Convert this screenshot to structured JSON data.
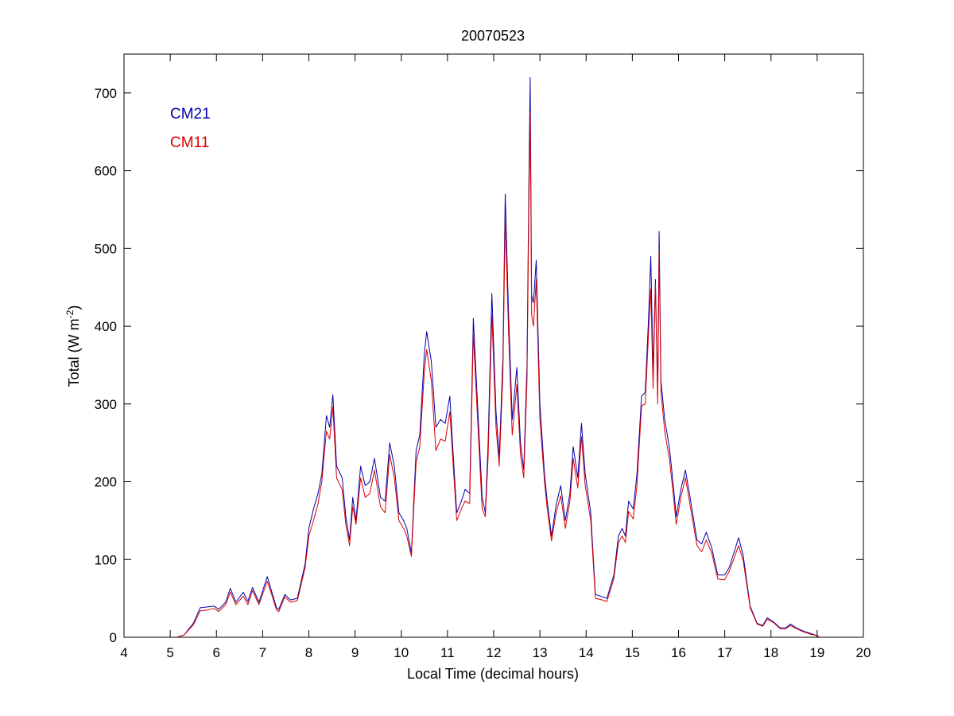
{
  "chart_data": {
    "type": "line",
    "title": "20070523",
    "xlabel": "Local Time (decimal hours)",
    "ylabel": {
      "base": "Total (W m",
      "sup": "-2",
      "close": ")"
    },
    "xlim": [
      4,
      20
    ],
    "ylim": [
      0,
      750
    ],
    "xticks": [
      4,
      5,
      6,
      7,
      8,
      9,
      10,
      11,
      12,
      13,
      14,
      15,
      16,
      17,
      18,
      19,
      20
    ],
    "yticks": [
      0,
      100,
      200,
      300,
      400,
      500,
      600,
      700
    ],
    "grid": false,
    "legend_position": "top-left",
    "series": [
      {
        "name": "CM21",
        "color": "#0000aa",
        "points": [
          [
            5.15,
            0
          ],
          [
            5.3,
            3
          ],
          [
            5.5,
            18
          ],
          [
            5.65,
            38
          ],
          [
            5.8,
            39
          ],
          [
            5.95,
            40
          ],
          [
            6.05,
            36
          ],
          [
            6.2,
            45
          ],
          [
            6.3,
            63
          ],
          [
            6.42,
            45
          ],
          [
            6.58,
            58
          ],
          [
            6.68,
            46
          ],
          [
            6.78,
            64
          ],
          [
            6.92,
            45
          ],
          [
            7.1,
            78
          ],
          [
            7.18,
            62
          ],
          [
            7.3,
            38
          ],
          [
            7.35,
            36
          ],
          [
            7.48,
            55
          ],
          [
            7.6,
            48
          ],
          [
            7.75,
            50
          ],
          [
            7.92,
            95
          ],
          [
            8.0,
            140
          ],
          [
            8.1,
            165
          ],
          [
            8.2,
            185
          ],
          [
            8.28,
            210
          ],
          [
            8.38,
            285
          ],
          [
            8.45,
            270
          ],
          [
            8.52,
            312
          ],
          [
            8.6,
            220
          ],
          [
            8.72,
            205
          ],
          [
            8.8,
            155
          ],
          [
            8.88,
            125
          ],
          [
            8.95,
            180
          ],
          [
            9.02,
            150
          ],
          [
            9.12,
            220
          ],
          [
            9.22,
            195
          ],
          [
            9.32,
            200
          ],
          [
            9.42,
            230
          ],
          [
            9.55,
            180
          ],
          [
            9.65,
            175
          ],
          [
            9.75,
            250
          ],
          [
            9.85,
            220
          ],
          [
            9.95,
            160
          ],
          [
            10.05,
            150
          ],
          [
            10.12,
            140
          ],
          [
            10.22,
            108
          ],
          [
            10.32,
            240
          ],
          [
            10.4,
            260
          ],
          [
            10.5,
            365
          ],
          [
            10.55,
            393
          ],
          [
            10.65,
            355
          ],
          [
            10.75,
            270
          ],
          [
            10.85,
            280
          ],
          [
            10.95,
            275
          ],
          [
            11.05,
            310
          ],
          [
            11.12,
            240
          ],
          [
            11.2,
            160
          ],
          [
            11.3,
            175
          ],
          [
            11.38,
            190
          ],
          [
            11.48,
            185
          ],
          [
            11.56,
            410
          ],
          [
            11.65,
            300
          ],
          [
            11.75,
            180
          ],
          [
            11.82,
            160
          ],
          [
            11.88,
            250
          ],
          [
            11.96,
            442
          ],
          [
            12.05,
            290
          ],
          [
            12.12,
            232
          ],
          [
            12.2,
            360
          ],
          [
            12.25,
            570
          ],
          [
            12.32,
            420
          ],
          [
            12.4,
            280
          ],
          [
            12.5,
            347
          ],
          [
            12.58,
            250
          ],
          [
            12.65,
            215
          ],
          [
            12.72,
            350
          ],
          [
            12.76,
            580
          ],
          [
            12.79,
            720
          ],
          [
            12.82,
            440
          ],
          [
            12.86,
            430
          ],
          [
            12.92,
            485
          ],
          [
            13.0,
            300
          ],
          [
            13.1,
            210
          ],
          [
            13.15,
            180
          ],
          [
            13.25,
            130
          ],
          [
            13.35,
            170
          ],
          [
            13.45,
            195
          ],
          [
            13.55,
            150
          ],
          [
            13.65,
            185
          ],
          [
            13.72,
            245
          ],
          [
            13.82,
            205
          ],
          [
            13.9,
            275
          ],
          [
            13.98,
            210
          ],
          [
            14.1,
            160
          ],
          [
            14.2,
            55
          ],
          [
            14.35,
            52
          ],
          [
            14.45,
            50
          ],
          [
            14.6,
            80
          ],
          [
            14.7,
            130
          ],
          [
            14.78,
            140
          ],
          [
            14.85,
            130
          ],
          [
            14.92,
            175
          ],
          [
            15.02,
            165
          ],
          [
            15.1,
            210
          ],
          [
            15.2,
            310
          ],
          [
            15.28,
            315
          ],
          [
            15.35,
            408
          ],
          [
            15.4,
            490
          ],
          [
            15.45,
            340
          ],
          [
            15.5,
            460
          ],
          [
            15.55,
            310
          ],
          [
            15.58,
            522
          ],
          [
            15.62,
            330
          ],
          [
            15.7,
            280
          ],
          [
            15.8,
            245
          ],
          [
            15.88,
            200
          ],
          [
            15.95,
            155
          ],
          [
            16.05,
            190
          ],
          [
            16.15,
            215
          ],
          [
            16.25,
            180
          ],
          [
            16.4,
            125
          ],
          [
            16.5,
            120
          ],
          [
            16.6,
            135
          ],
          [
            16.72,
            115
          ],
          [
            16.85,
            80
          ],
          [
            17.0,
            80
          ],
          [
            17.1,
            90
          ],
          [
            17.3,
            128
          ],
          [
            17.4,
            105
          ],
          [
            17.55,
            40
          ],
          [
            17.7,
            18
          ],
          [
            17.82,
            15
          ],
          [
            17.92,
            25
          ],
          [
            18.05,
            20
          ],
          [
            18.2,
            12
          ],
          [
            18.32,
            12
          ],
          [
            18.42,
            17
          ],
          [
            18.55,
            12
          ],
          [
            18.7,
            8
          ],
          [
            18.85,
            5
          ],
          [
            19.0,
            2
          ],
          [
            19.05,
            0
          ]
        ]
      },
      {
        "name": "CM11",
        "color": "#dd0000",
        "points": [
          [
            5.15,
            0
          ],
          [
            5.3,
            3
          ],
          [
            5.5,
            16
          ],
          [
            5.65,
            34
          ],
          [
            5.8,
            35
          ],
          [
            5.95,
            37
          ],
          [
            6.05,
            33
          ],
          [
            6.2,
            42
          ],
          [
            6.3,
            58
          ],
          [
            6.42,
            42
          ],
          [
            6.58,
            53
          ],
          [
            6.68,
            42
          ],
          [
            6.78,
            60
          ],
          [
            6.92,
            42
          ],
          [
            7.1,
            72
          ],
          [
            7.18,
            58
          ],
          [
            7.3,
            35
          ],
          [
            7.35,
            33
          ],
          [
            7.48,
            52
          ],
          [
            7.6,
            45
          ],
          [
            7.75,
            47
          ],
          [
            7.92,
            90
          ],
          [
            8.0,
            130
          ],
          [
            8.1,
            150
          ],
          [
            8.2,
            172
          ],
          [
            8.28,
            200
          ],
          [
            8.38,
            265
          ],
          [
            8.45,
            255
          ],
          [
            8.52,
            296
          ],
          [
            8.6,
            205
          ],
          [
            8.72,
            190
          ],
          [
            8.8,
            145
          ],
          [
            8.88,
            118
          ],
          [
            8.95,
            168
          ],
          [
            9.02,
            145
          ],
          [
            9.12,
            205
          ],
          [
            9.22,
            180
          ],
          [
            9.32,
            185
          ],
          [
            9.42,
            215
          ],
          [
            9.55,
            168
          ],
          [
            9.65,
            160
          ],
          [
            9.75,
            235
          ],
          [
            9.85,
            205
          ],
          [
            9.95,
            150
          ],
          [
            10.05,
            140
          ],
          [
            10.12,
            130
          ],
          [
            10.22,
            104
          ],
          [
            10.32,
            225
          ],
          [
            10.4,
            245
          ],
          [
            10.5,
            342
          ],
          [
            10.55,
            370
          ],
          [
            10.65,
            330
          ],
          [
            10.75,
            240
          ],
          [
            10.85,
            255
          ],
          [
            10.95,
            252
          ],
          [
            11.05,
            290
          ],
          [
            11.12,
            225
          ],
          [
            11.2,
            150
          ],
          [
            11.3,
            165
          ],
          [
            11.38,
            175
          ],
          [
            11.48,
            172
          ],
          [
            11.56,
            390
          ],
          [
            11.65,
            280
          ],
          [
            11.75,
            165
          ],
          [
            11.82,
            155
          ],
          [
            11.88,
            232
          ],
          [
            11.96,
            415
          ],
          [
            12.05,
            270
          ],
          [
            12.12,
            220
          ],
          [
            12.2,
            340
          ],
          [
            12.25,
            540
          ],
          [
            12.32,
            395
          ],
          [
            12.4,
            260
          ],
          [
            12.5,
            325
          ],
          [
            12.58,
            235
          ],
          [
            12.65,
            205
          ],
          [
            12.72,
            330
          ],
          [
            12.76,
            550
          ],
          [
            12.79,
            675
          ],
          [
            12.82,
            415
          ],
          [
            12.86,
            400
          ],
          [
            12.92,
            460
          ],
          [
            13.0,
            280
          ],
          [
            13.1,
            200
          ],
          [
            13.15,
            170
          ],
          [
            13.25,
            124
          ],
          [
            13.35,
            160
          ],
          [
            13.45,
            182
          ],
          [
            13.55,
            140
          ],
          [
            13.65,
            175
          ],
          [
            13.72,
            230
          ],
          [
            13.82,
            192
          ],
          [
            13.9,
            258
          ],
          [
            13.98,
            195
          ],
          [
            14.1,
            150
          ],
          [
            14.2,
            50
          ],
          [
            14.35,
            48
          ],
          [
            14.45,
            46
          ],
          [
            14.6,
            75
          ],
          [
            14.7,
            122
          ],
          [
            14.78,
            130
          ],
          [
            14.85,
            122
          ],
          [
            14.92,
            162
          ],
          [
            15.02,
            152
          ],
          [
            15.1,
            195
          ],
          [
            15.2,
            298
          ],
          [
            15.28,
            300
          ],
          [
            15.35,
            390
          ],
          [
            15.4,
            448
          ],
          [
            15.45,
            320
          ],
          [
            15.5,
            455
          ],
          [
            15.55,
            300
          ],
          [
            15.58,
            498
          ],
          [
            15.62,
            315
          ],
          [
            15.7,
            265
          ],
          [
            15.8,
            230
          ],
          [
            15.88,
            188
          ],
          [
            15.95,
            145
          ],
          [
            16.05,
            180
          ],
          [
            16.15,
            205
          ],
          [
            16.25,
            170
          ],
          [
            16.4,
            118
          ],
          [
            16.5,
            110
          ],
          [
            16.6,
            125
          ],
          [
            16.72,
            108
          ],
          [
            16.85,
            75
          ],
          [
            17.0,
            74
          ],
          [
            17.1,
            85
          ],
          [
            17.3,
            118
          ],
          [
            17.4,
            98
          ],
          [
            17.55,
            38
          ],
          [
            17.7,
            17
          ],
          [
            17.82,
            14
          ],
          [
            17.92,
            23
          ],
          [
            18.05,
            19
          ],
          [
            18.2,
            11
          ],
          [
            18.32,
            11
          ],
          [
            18.42,
            15
          ],
          [
            18.55,
            11
          ],
          [
            18.7,
            7
          ],
          [
            18.85,
            4
          ],
          [
            19.0,
            2
          ],
          [
            19.05,
            0
          ]
        ]
      }
    ]
  }
}
